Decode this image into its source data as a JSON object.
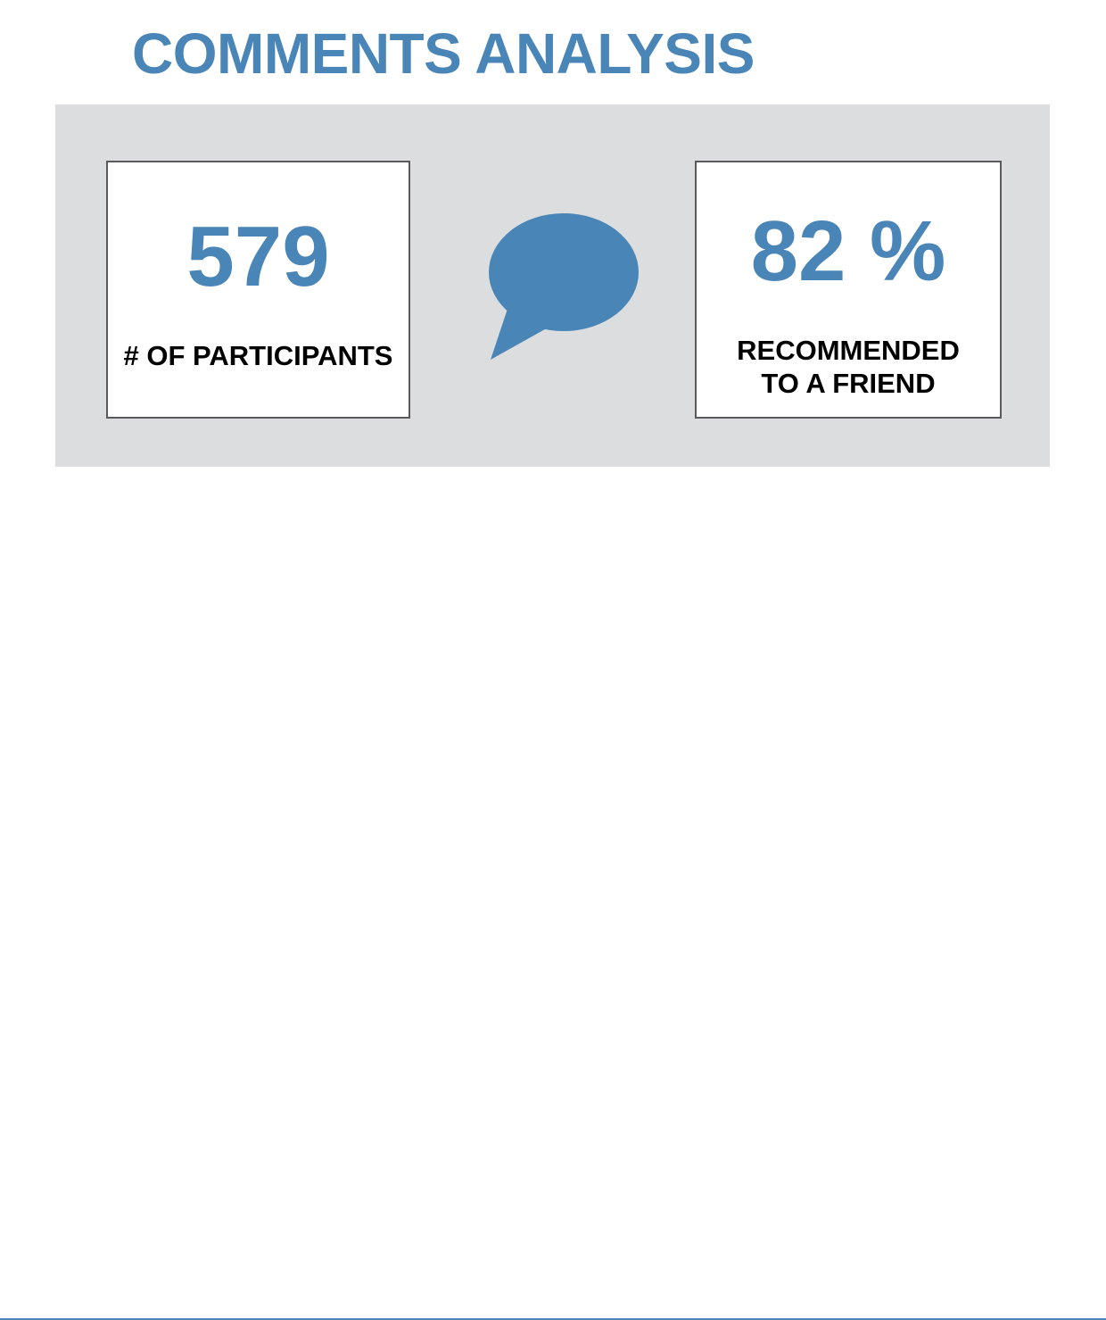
{
  "page": {
    "title": "COMMENTS ANALYSIS"
  },
  "stats": {
    "participants": {
      "value": "579",
      "label": "# OF PARTICIPANTS"
    },
    "recommended": {
      "value": "82 %",
      "label": "RECOMMENDED TO A FRIEND"
    }
  },
  "icons": {
    "center_icon": "speech-bubble-icon"
  },
  "colors": {
    "accent": "#4a85b8",
    "panel_background": "#dcdddf",
    "card_border": "#5a5a5c",
    "label_text": "#000000"
  }
}
